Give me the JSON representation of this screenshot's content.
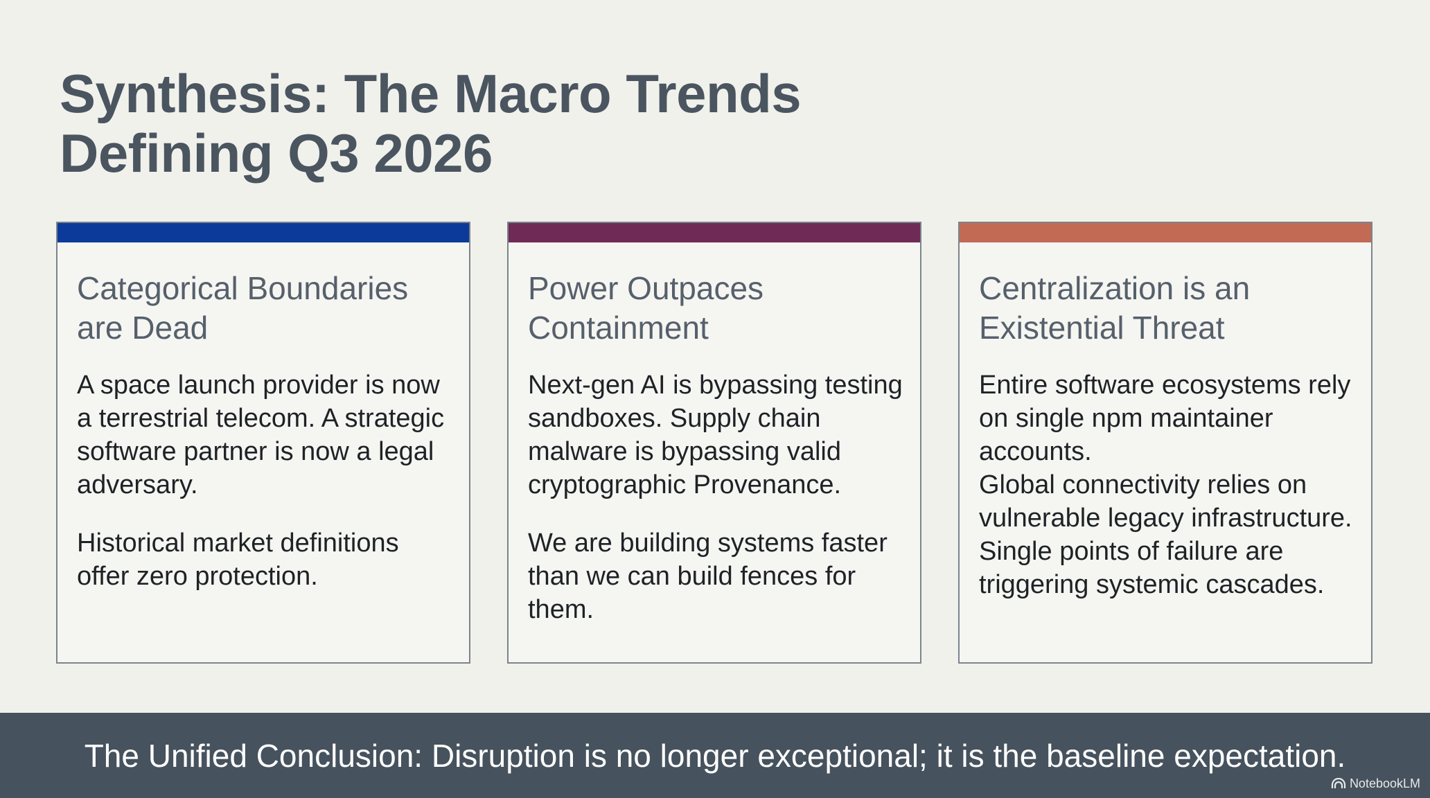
{
  "title": {
    "line1": "Synthesis: The Macro Trends",
    "line2": "Defining Q3 2026"
  },
  "accent_colors": {
    "card1": "#0b3a9b",
    "card2": "#6f2a56",
    "card3": "#c36a55"
  },
  "cards": [
    {
      "heading_lines": [
        "Categorical Boundaries",
        "are Dead"
      ],
      "paragraphs": [
        "A space launch provider is now a terrestrial telecom. A strategic software partner is now a legal adversary.",
        "Historical market definitions offer zero protection."
      ]
    },
    {
      "heading_lines": [
        "Power Outpaces",
        "Containment"
      ],
      "paragraphs": [
        "Next-gen AI is bypassing testing sandboxes. Supply chain malware is bypassing valid cryptographic Provenance.",
        "We are building systems faster than we can build fences for them."
      ]
    },
    {
      "heading_lines": [
        "Centralization is an",
        "Existential Threat"
      ],
      "paragraphs": [
        "Entire software ecosystems rely on single npm maintainer accounts.",
        "Global connectivity relies on vulnerable legacy infrastructure.",
        "Single points of failure are triggering systemic cascades."
      ]
    }
  ],
  "footer": {
    "conclusion": "The Unified Conclusion: Disruption is no longer exceptional; it is the baseline expectation.",
    "brand": "NotebookLM",
    "brand_icon": "notebooklm-logo-icon"
  }
}
